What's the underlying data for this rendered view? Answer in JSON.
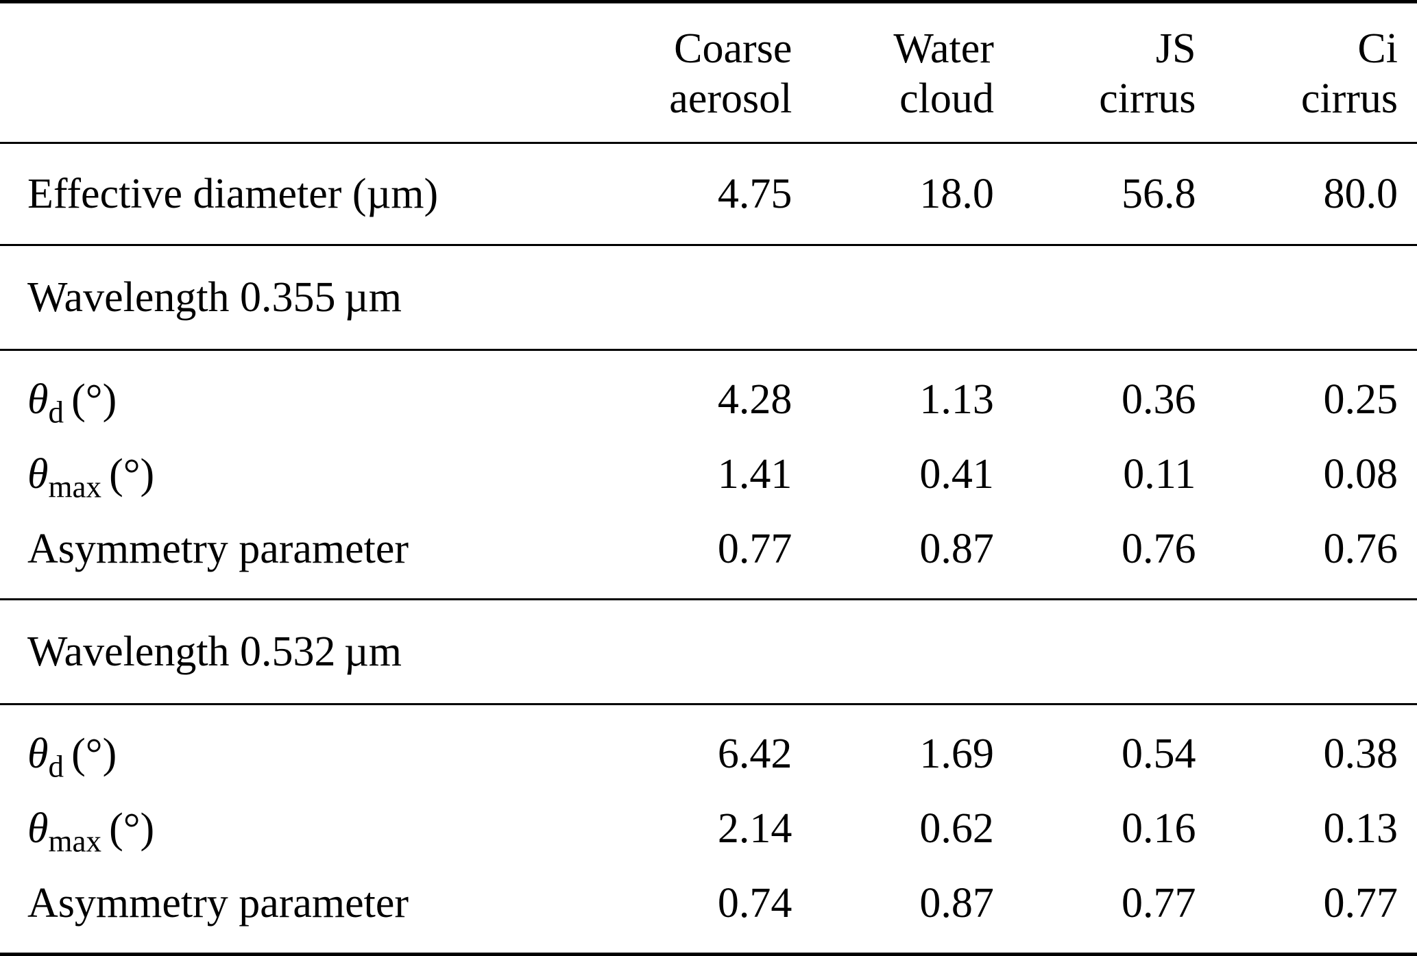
{
  "table": {
    "header": {
      "columns": [
        {
          "line1": "Coarse",
          "line2": "aerosol"
        },
        {
          "line1": "Water",
          "line2": "cloud"
        },
        {
          "line1": "JS",
          "line2": "cirrus"
        },
        {
          "line1": "Ci",
          "line2": "cirrus"
        }
      ]
    },
    "effective_diameter": {
      "label": "Effective diameter (µm)",
      "values": [
        "4.75",
        "18.0",
        "56.8",
        "80.0"
      ]
    },
    "sections": [
      {
        "title": "Wavelength 0.355 µm",
        "rows": [
          {
            "symbol": "θ",
            "subscript": "d",
            "unit": "(°)",
            "values": [
              "4.28",
              "1.13",
              "0.36",
              "0.25"
            ]
          },
          {
            "symbol": "θ",
            "subscript": "max",
            "unit": "(°)",
            "values": [
              "1.41",
              "0.41",
              "0.11",
              "0.08"
            ]
          },
          {
            "label": "Asymmetry parameter",
            "values": [
              "0.77",
              "0.87",
              "0.76",
              "0.76"
            ]
          }
        ]
      },
      {
        "title": "Wavelength 0.532 µm",
        "rows": [
          {
            "symbol": "θ",
            "subscript": "d",
            "unit": "(°)",
            "values": [
              "6.42",
              "1.69",
              "0.54",
              "0.38"
            ]
          },
          {
            "symbol": "θ",
            "subscript": "max",
            "unit": "(°)",
            "values": [
              "2.14",
              "0.62",
              "0.16",
              "0.13"
            ]
          },
          {
            "label": "Asymmetry parameter",
            "values": [
              "0.74",
              "0.87",
              "0.77",
              "0.77"
            ]
          }
        ]
      }
    ]
  }
}
